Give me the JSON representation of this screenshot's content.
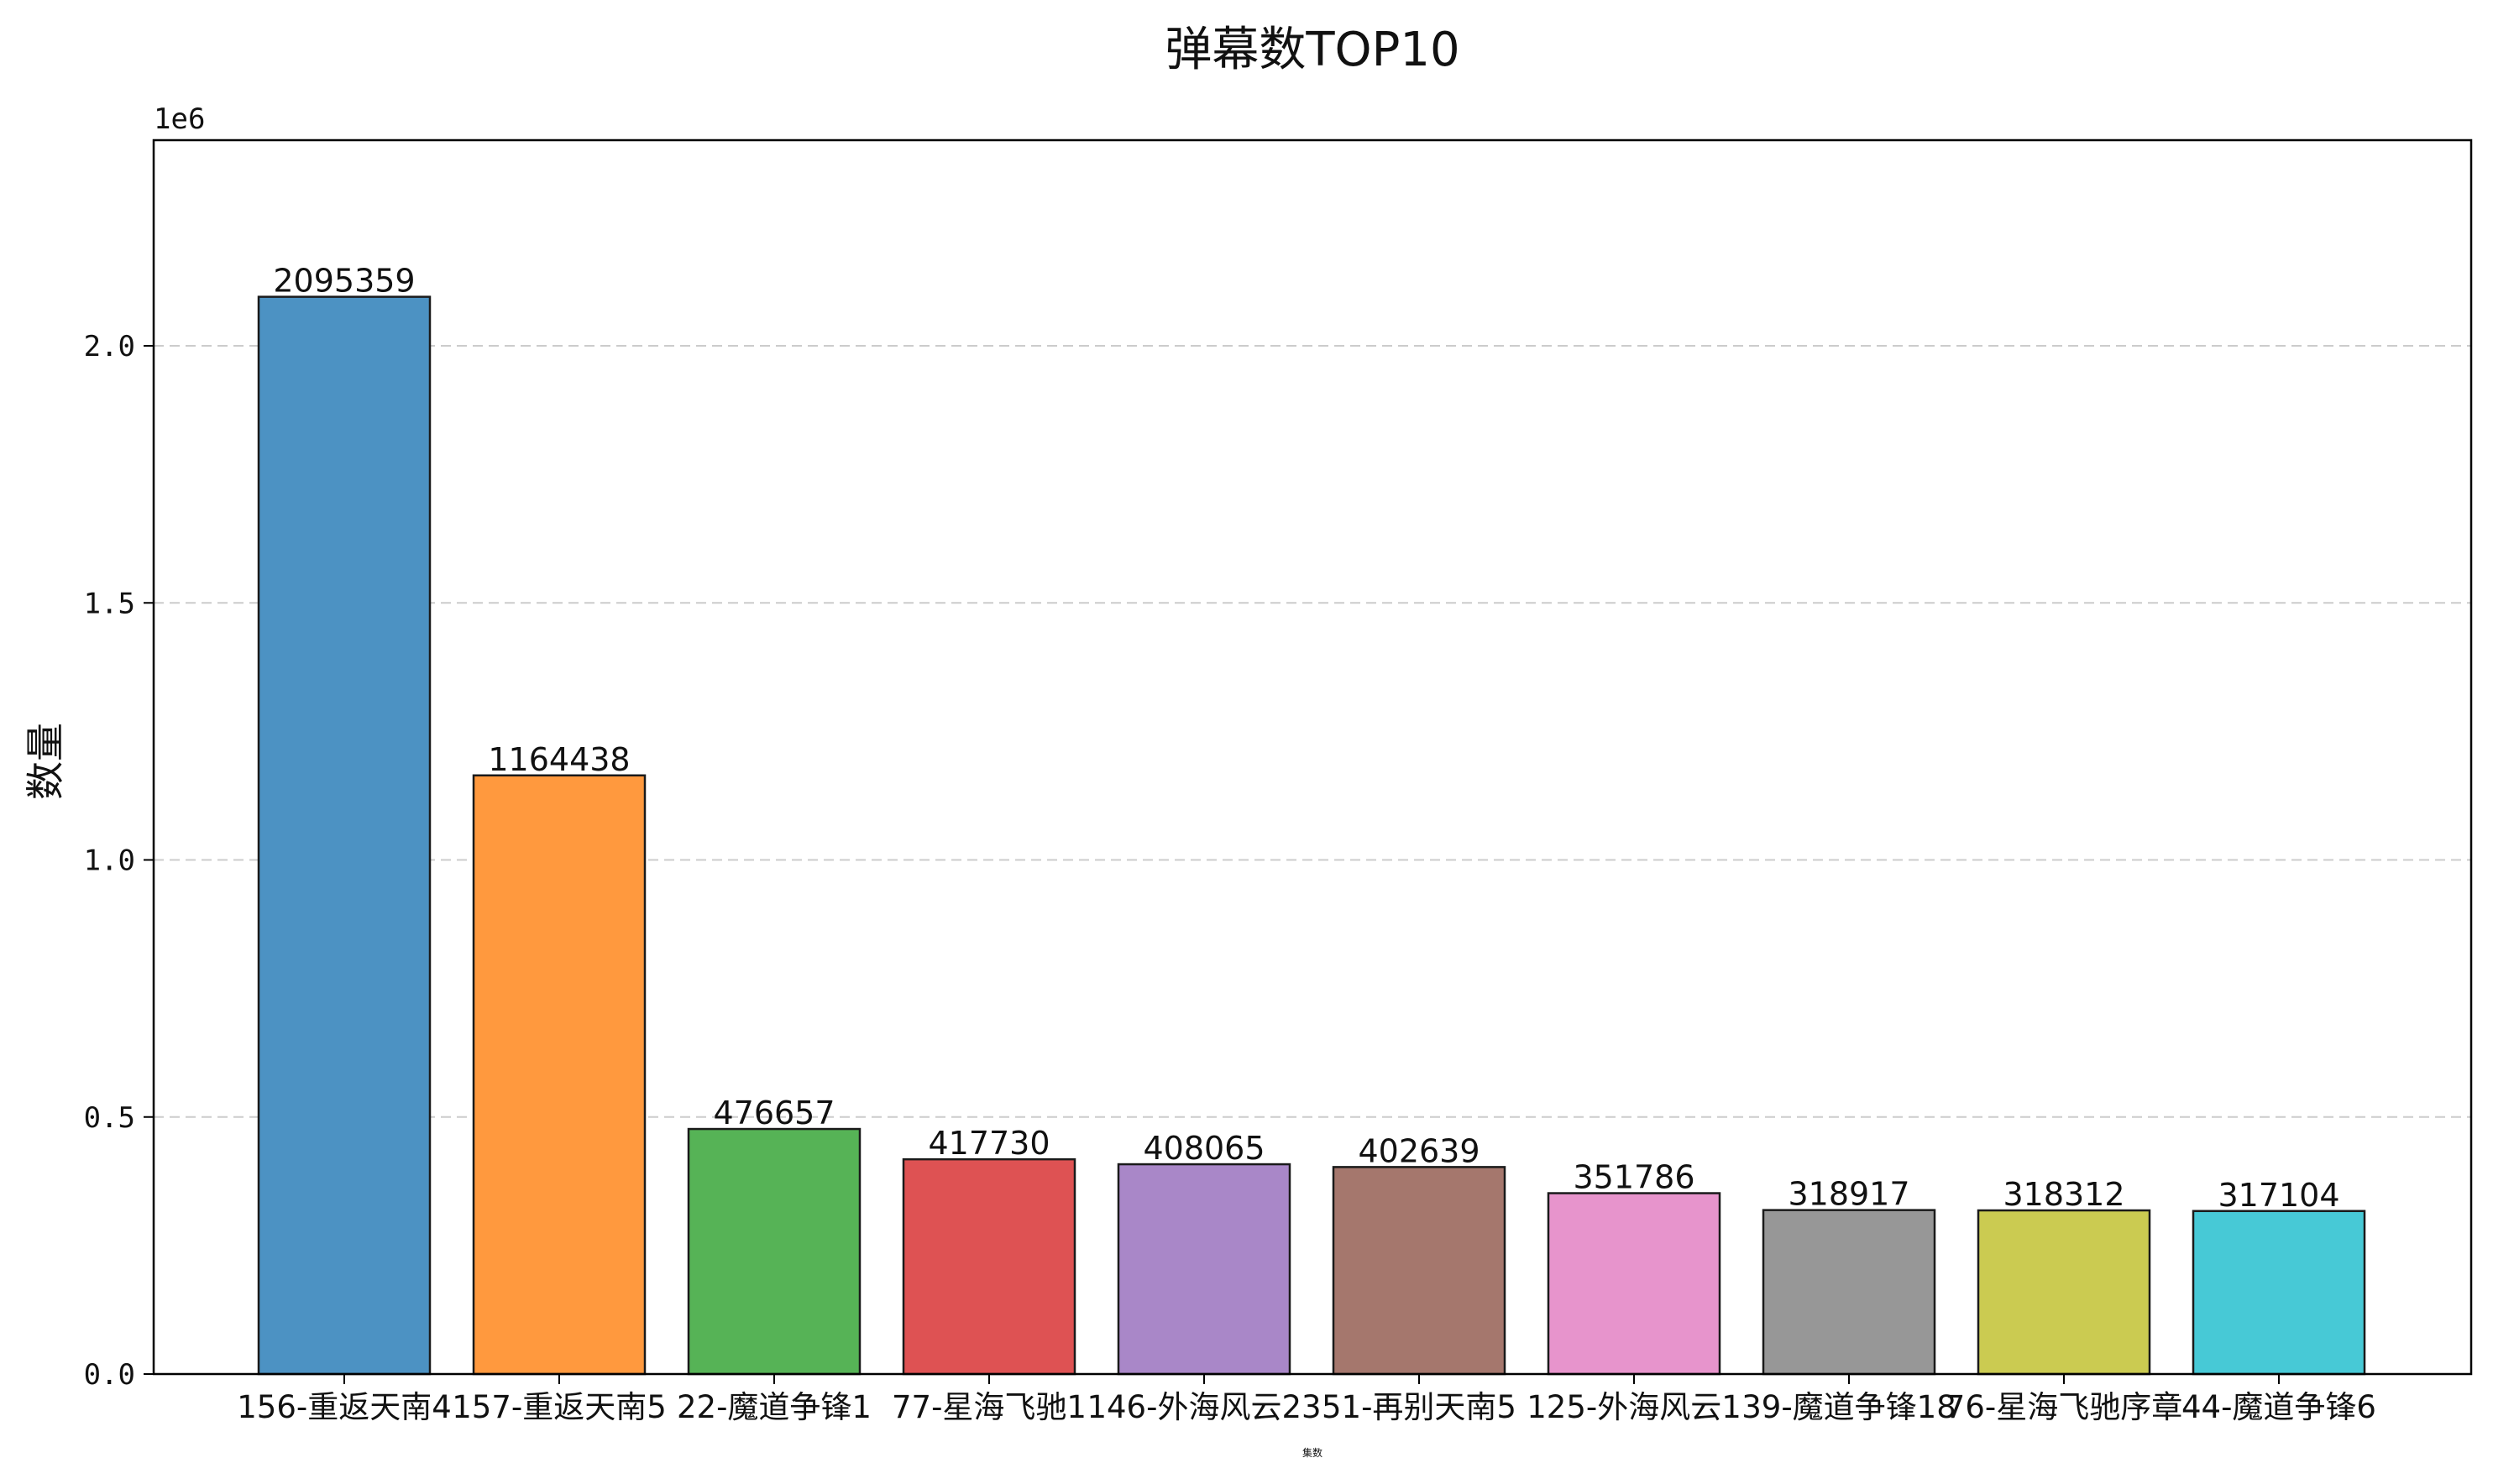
{
  "chart_data": {
    "type": "bar",
    "title": "弹幕数TOP10",
    "xlabel": "集数",
    "ylabel": "数量",
    "y_offset_label": "1e6",
    "y_scale": 1000000,
    "ylim": [
      0,
      2400000
    ],
    "yticks": [
      0,
      500000,
      1000000,
      1500000,
      2000000
    ],
    "ytick_labels": [
      "0.0",
      "0.5",
      "1.0",
      "1.5",
      "2.0"
    ],
    "grid": "y-dashed",
    "categories": [
      "156-重返天南4",
      "157-重返天南5",
      "22-魔道争锋1",
      "77-星海飞驰1",
      "146-外海风云23",
      "51-再别天南5",
      "125-外海风云1",
      "39-魔道争锋18",
      "76-星海飞驰序章",
      "44-魔道争锋6"
    ],
    "values": [
      2095359,
      1164438,
      476657,
      417730,
      408065,
      402639,
      351786,
      318917,
      318312,
      317104
    ],
    "data_labels": [
      "2095359",
      "1164438",
      "476657",
      "417730",
      "408065",
      "402639",
      "351786",
      "318917",
      "318312",
      "317104"
    ],
    "colors": [
      "#4c92c3",
      "#ff993e",
      "#56b356",
      "#de5253",
      "#a987c8",
      "#a5776d",
      "#e794cc",
      "#979797",
      "#cbcb51",
      "#47c9d6"
    ]
  }
}
